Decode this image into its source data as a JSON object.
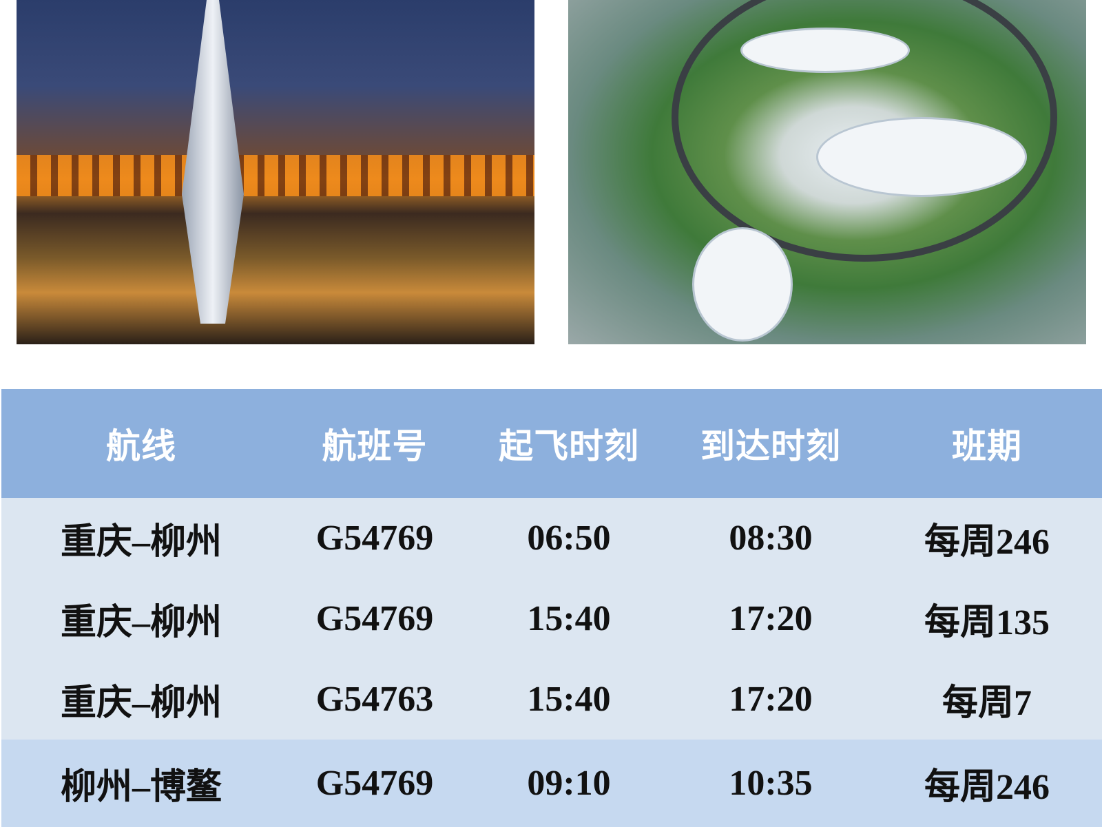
{
  "colors": {
    "header_bg": "#8db0dd",
    "row_bg": "#dce6f1",
    "highlight_row_bg": "#c6d9f0"
  },
  "photos": {
    "left": "night-bridge-cityscape",
    "right": "aerial-park-stadium"
  },
  "table": {
    "headers": [
      "航线",
      "航班号",
      "起飞时刻",
      "到达时刻",
      "班期"
    ],
    "rows": [
      [
        "重庆–柳州",
        "G54769",
        "06:50",
        "08:30",
        "每周246"
      ],
      [
        "重庆–柳州",
        "G54769",
        "15:40",
        "17:20",
        "每周135"
      ],
      [
        "重庆–柳州",
        "G54763",
        "15:40",
        "17:20",
        "每周7"
      ],
      [
        "柳州–博鳌",
        "G54769",
        "09:10",
        "10:35",
        "每周246"
      ]
    ]
  }
}
